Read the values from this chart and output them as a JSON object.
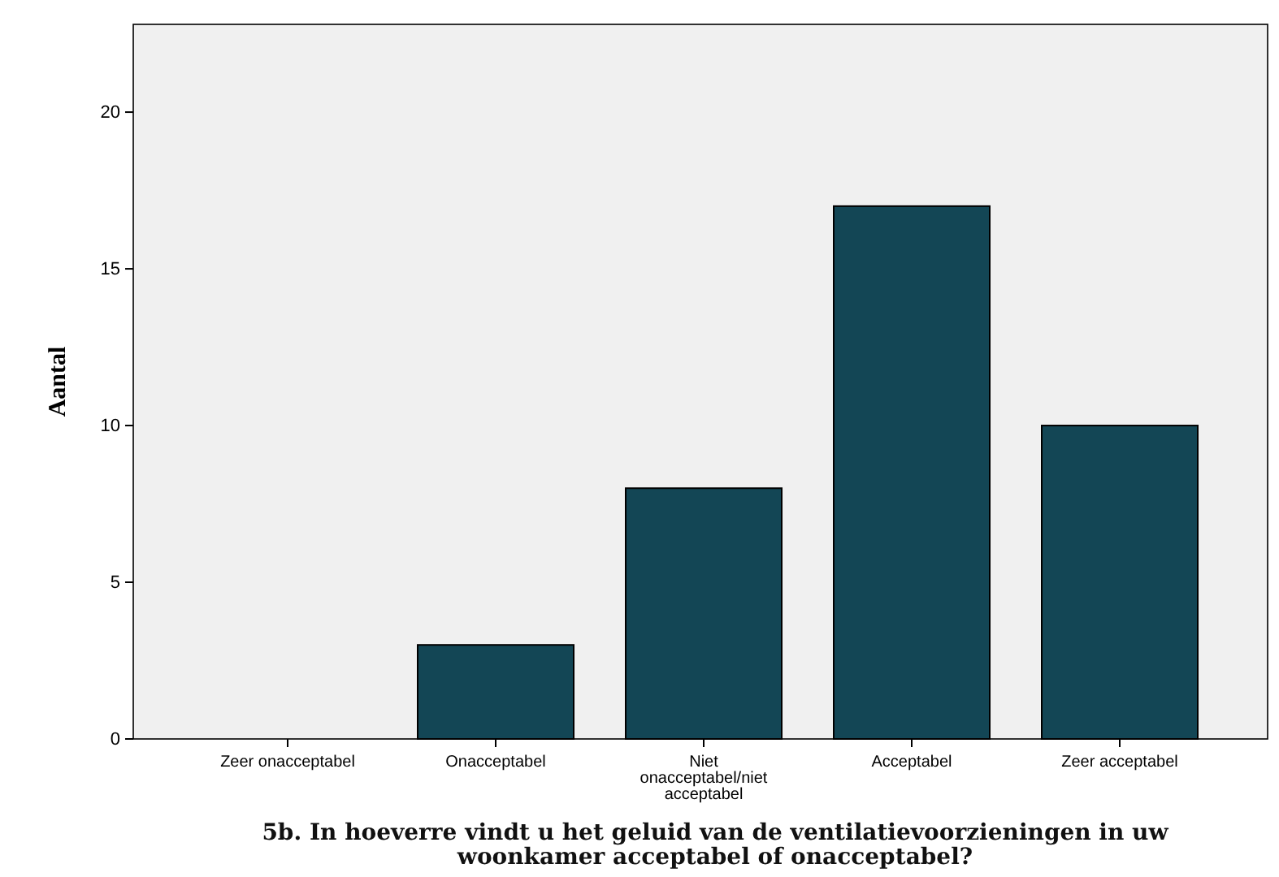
{
  "chart_data": {
    "type": "bar",
    "xlabel": "5b. In hoeverre vindt u het geluid van de ventilatievoorzieningen in uw woonkamer acceptabel of onacceptabel?",
    "ylabel": "Aantal",
    "categories": [
      "Zeer onacceptabel",
      "Onacceptabel",
      "Niet onacceptabel/niet acceptabel",
      "Acceptabel",
      "Zeer acceptabel"
    ],
    "values": [
      0,
      3,
      8,
      17,
      10
    ],
    "color": "#134655",
    "ylim": [
      0,
      22.8
    ],
    "yticks": [
      0,
      5,
      10,
      15,
      20
    ],
    "grid": false
  }
}
